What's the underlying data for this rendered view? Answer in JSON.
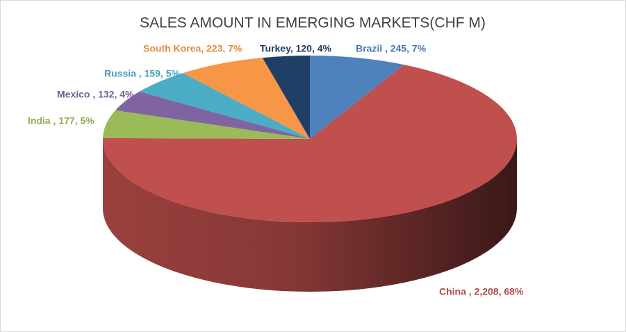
{
  "chart_data": {
    "type": "pie3d",
    "title": "SALES AMOUNT IN EMERGING MARKETS(CHF M)",
    "values": [
      245,
      2208,
      177,
      132,
      159,
      223,
      120
    ],
    "value_labels": [
      "Brazil , 245, 7%",
      "China , 2,208, 68%",
      "India , 177, 5%",
      "Mexico , 132, 4%",
      "Russia , 159, 5%",
      "South Korea, 223, 7%",
      "Turkey, 120, 4%"
    ],
    "colors": [
      "#4f81bd",
      "#c0504d",
      "#9bbb59",
      "#8064a2",
      "#4bacc6",
      "#f79646",
      "#1f3f66"
    ]
  }
}
